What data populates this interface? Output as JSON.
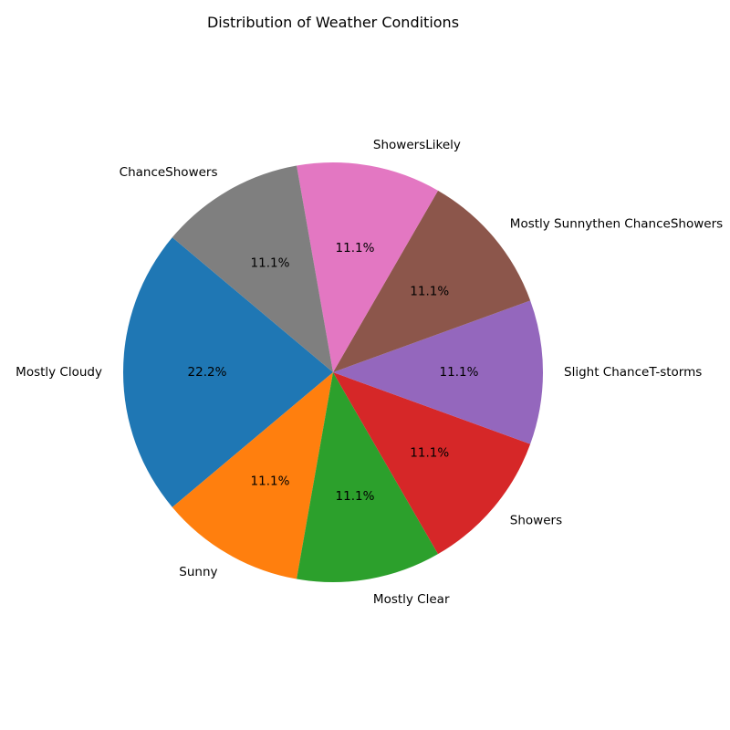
{
  "chart_data": {
    "type": "pie",
    "title": "Distribution of Weather Conditions",
    "start_angle_deg": 140,
    "direction": "counterclockwise",
    "slices": [
      {
        "label": "Mostly Cloudy",
        "value": 2,
        "pct_label": "22.2%",
        "color": "#1f77b4"
      },
      {
        "label": "Sunny",
        "value": 1,
        "pct_label": "11.1%",
        "color": "#ff7f0e"
      },
      {
        "label": "Mostly Clear",
        "value": 1,
        "pct_label": "11.1%",
        "color": "#2ca02c"
      },
      {
        "label": "Showers",
        "value": 1,
        "pct_label": "11.1%",
        "color": "#d62728"
      },
      {
        "label": "Slight ChanceT-storms",
        "value": 1,
        "pct_label": "11.1%",
        "color": "#9467bd"
      },
      {
        "label": "Mostly Sunnythen ChanceShowers",
        "value": 1,
        "pct_label": "11.1%",
        "color": "#8c564b"
      },
      {
        "label": "ShowersLikely",
        "value": 1,
        "pct_label": "11.1%",
        "color": "#e377c2"
      },
      {
        "label": "ChanceShowers",
        "value": 1,
        "pct_label": "11.1%",
        "color": "#7f7f7f"
      }
    ]
  }
}
